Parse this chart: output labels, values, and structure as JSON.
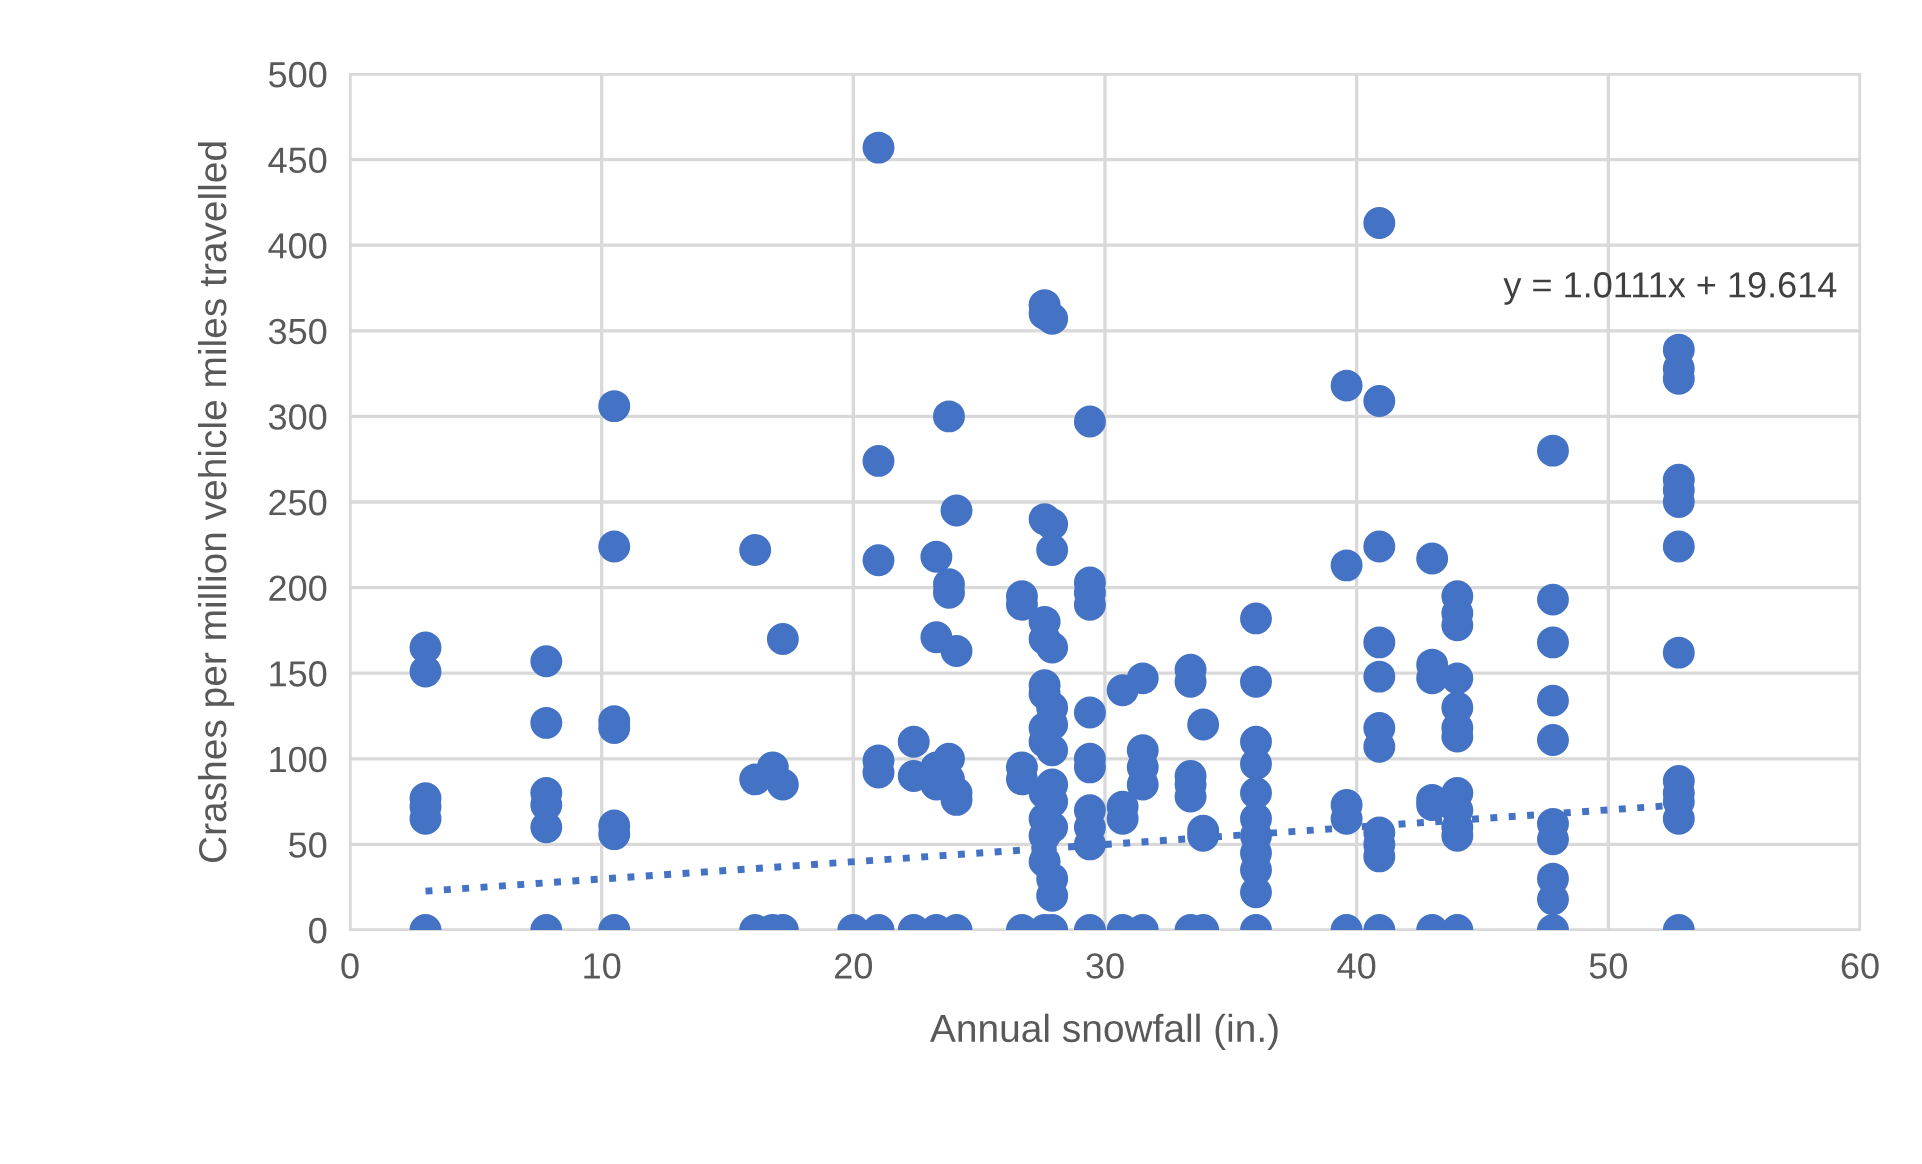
{
  "chart_data": {
    "type": "scatter",
    "xlabel": "Annual snowfall (in.)",
    "ylabel": "Crashes per million vehicle miles travelled",
    "xlim": [
      0,
      60
    ],
    "xticks": [
      0,
      10,
      20,
      30,
      40,
      50,
      60
    ],
    "ylim": [
      0,
      500
    ],
    "yticks": [
      0,
      50,
      100,
      150,
      200,
      250,
      300,
      350,
      400,
      450,
      500
    ],
    "grid": true,
    "legend": false,
    "marker": "circle",
    "annotations": [
      "y = 1.0111x + 19.614"
    ],
    "series": [
      {
        "color": "#4472c4",
        "x": [
          3,
          3,
          3,
          3,
          3,
          3,
          7.8,
          7.8,
          7.8,
          7.8,
          7.8,
          7.8,
          10.5,
          10.5,
          10.5,
          10.5,
          10.5,
          10.5,
          10.5,
          16.1,
          16.1,
          16.1,
          16.8,
          16.8,
          17.2,
          17.2,
          17.2,
          20,
          21,
          21,
          21,
          21,
          21,
          21,
          22.4,
          22.4,
          22.4,
          23.3,
          23.3,
          23.3,
          23.3,
          23.3,
          23.8,
          23.8,
          23.8,
          23.8,
          23.8,
          24.1,
          24.1,
          24.1,
          24.1,
          24.1,
          26.7,
          26.7,
          26.7,
          26.7,
          26.7,
          27.6,
          27.6,
          27.6,
          27.6,
          27.6,
          27.6,
          27.6,
          27.6,
          27.6,
          27.6,
          27.6,
          27.6,
          27.6,
          27.6,
          27.9,
          27.9,
          27.9,
          27.9,
          27.9,
          27.9,
          27.9,
          27.9,
          27.9,
          27.9,
          27.9,
          27.9,
          27.9,
          29.4,
          29.4,
          29.4,
          29.4,
          29.4,
          29.4,
          29.4,
          29.4,
          29.4,
          29.4,
          29.4,
          30.7,
          30.7,
          30.7,
          30.7,
          31.5,
          31.5,
          31.5,
          31.5,
          31.5,
          33.4,
          33.4,
          33.4,
          33.4,
          33.4,
          33.4,
          33.9,
          33.9,
          33.9,
          33.9,
          36,
          36,
          36,
          36,
          36,
          36,
          36,
          36,
          36,
          36,
          36,
          39.6,
          39.6,
          39.6,
          39.6,
          39.6,
          40.9,
          40.9,
          40.9,
          40.9,
          40.9,
          40.9,
          40.9,
          40.9,
          40.9,
          40.9,
          40.9,
          43,
          43,
          43,
          43,
          43,
          43,
          44,
          44,
          44,
          44,
          44,
          44,
          44,
          44,
          44,
          44,
          44,
          44,
          47.8,
          47.8,
          47.8,
          47.8,
          47.8,
          47.8,
          47.8,
          47.8,
          47.8,
          47.8,
          52.8,
          52.8,
          52.8,
          52.8,
          52.8,
          52.8,
          52.8,
          52.8,
          52.8,
          52.8,
          52.8,
          52.8,
          52.8
        ],
        "values": [
          165,
          151,
          77,
          72,
          65,
          0,
          157,
          121,
          80,
          73,
          60,
          0,
          306,
          224,
          122,
          118,
          61,
          56,
          0,
          222,
          88,
          0,
          95,
          0,
          170,
          85,
          0,
          0,
          457,
          274,
          216,
          99,
          92,
          0,
          110,
          90,
          0,
          218,
          171,
          95,
          85,
          0,
          300,
          202,
          197,
          100,
          88,
          245,
          163,
          80,
          76,
          0,
          195,
          190,
          95,
          88,
          0,
          365,
          360,
          240,
          180,
          170,
          143,
          138,
          118,
          110,
          80,
          65,
          55,
          40,
          0,
          357,
          237,
          222,
          165,
          130,
          120,
          105,
          85,
          75,
          60,
          30,
          20,
          0,
          297,
          203,
          197,
          190,
          127,
          100,
          95,
          70,
          60,
          50,
          0,
          140,
          72,
          65,
          0,
          147,
          105,
          95,
          85,
          0,
          152,
          145,
          90,
          85,
          78,
          0,
          120,
          58,
          55,
          0,
          182,
          145,
          110,
          97,
          80,
          65,
          55,
          45,
          35,
          22,
          0,
          318,
          213,
          73,
          65,
          0,
          413,
          309,
          224,
          168,
          148,
          118,
          107,
          57,
          50,
          43,
          0,
          217,
          155,
          147,
          76,
          73,
          0,
          195,
          185,
          178,
          147,
          130,
          118,
          113,
          80,
          70,
          60,
          55,
          0,
          280,
          193,
          168,
          134,
          111,
          62,
          53,
          30,
          18,
          0,
          339,
          328,
          322,
          263,
          257,
          250,
          224,
          162,
          87,
          80,
          75,
          65,
          0
        ]
      },
      {
        "color": "#4472c4",
        "type": "line",
        "line_style": "dotted",
        "marker": "none",
        "x": [
          3,
          52.8
        ],
        "values": [
          22.7,
          73.0
        ]
      }
    ]
  }
}
